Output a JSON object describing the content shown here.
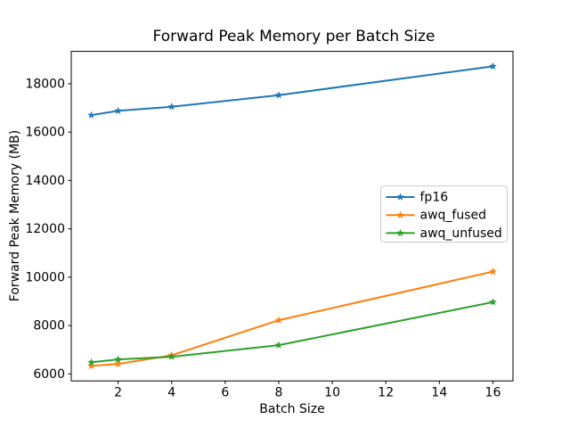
{
  "figure": {
    "background_color": "#ffffff",
    "frame_color": "#000000"
  },
  "chart_data": {
    "type": "line",
    "title": "Forward Peak Memory per Batch Size",
    "xlabel": "Batch Size",
    "ylabel": "Forward Peak Memory (MB)",
    "x": [
      1,
      2,
      4,
      8,
      16
    ],
    "series": [
      {
        "name": "fp16",
        "color": "#1f77b4",
        "values": [
          16700,
          16880,
          17050,
          17530,
          18720
        ]
      },
      {
        "name": "awq_fused",
        "color": "#ff7f0e",
        "values": [
          6330,
          6410,
          6770,
          8220,
          10230
        ]
      },
      {
        "name": "awq_unfused",
        "color": "#2ca02c",
        "values": [
          6480,
          6600,
          6710,
          7190,
          8970
        ]
      }
    ],
    "marker": "star",
    "line_width": 2,
    "xticks": [
      2,
      4,
      6,
      8,
      10,
      12,
      14,
      16
    ],
    "yticks": [
      6000,
      8000,
      10000,
      12000,
      14000,
      16000,
      18000
    ],
    "xlim": [
      0.25,
      16.75
    ],
    "ylim": [
      5710,
      19340
    ],
    "grid": false,
    "legend_position": "center right",
    "legend_border_color": "#cccccc"
  }
}
